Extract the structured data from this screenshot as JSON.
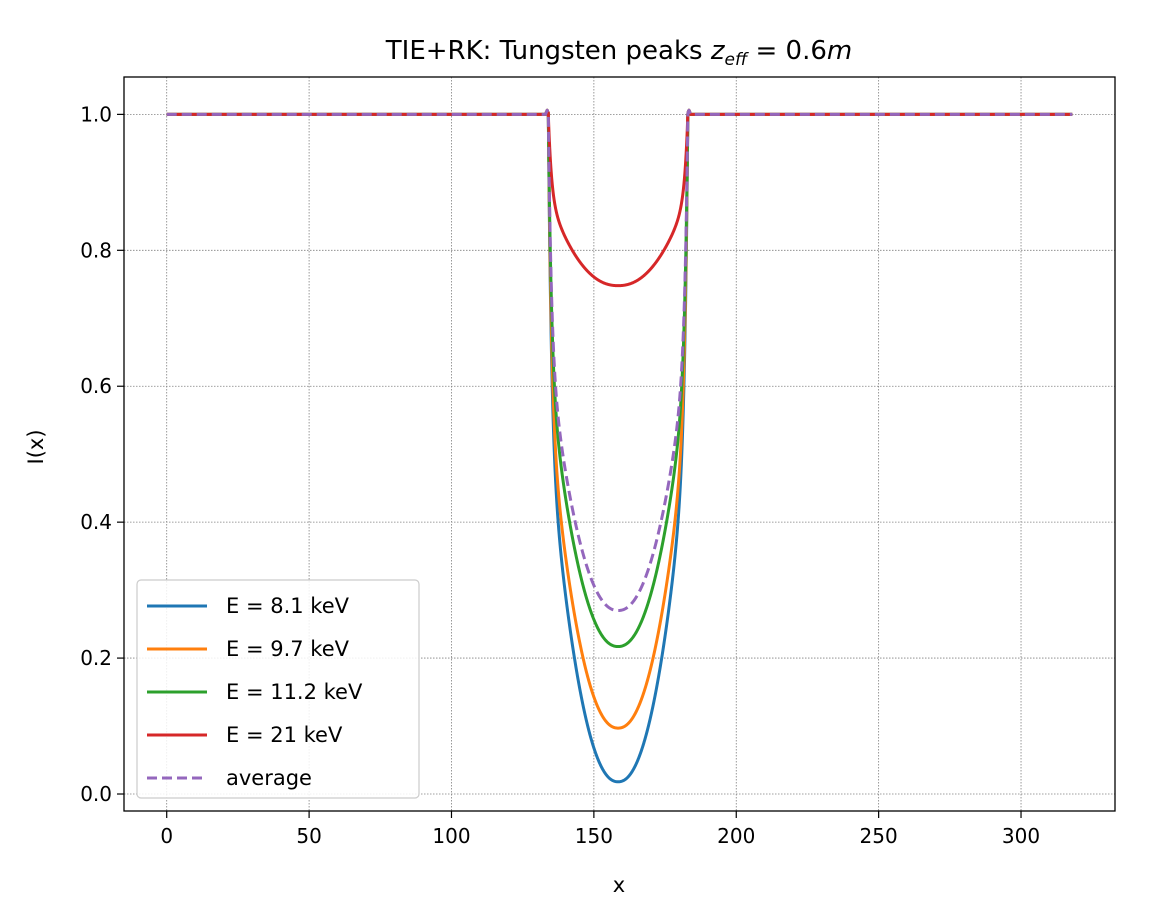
{
  "chart_data": {
    "type": "line",
    "title": "TIE+RK: Tungsten peaks ",
    "title_math": "z_eff = 0.6m",
    "xlabel": "x",
    "ylabel": "I(x)",
    "xlim": [
      -15,
      333
    ],
    "ylim": [
      -0.025,
      1.055
    ],
    "xticks": [
      0,
      50,
      100,
      150,
      200,
      250,
      300
    ],
    "yticks": [
      0.0,
      0.2,
      0.4,
      0.6,
      0.8,
      1.0
    ],
    "grid": true,
    "legend_position": "lower-left",
    "feature": {
      "x_start": 134,
      "x_end": 183,
      "x_center": 158.5,
      "x_max": 318,
      "baseline": 1.0
    },
    "series": [
      {
        "name": "E = 8.1 keV",
        "color": "#1f77b4",
        "dash": "solid",
        "min_value": 0.018
      },
      {
        "name": "E = 9.7 keV",
        "color": "#ff7f0e",
        "dash": "solid",
        "min_value": 0.097
      },
      {
        "name": "E = 11.2 keV",
        "color": "#2ca02c",
        "dash": "solid",
        "min_value": 0.217
      },
      {
        "name": "E = 21 keV",
        "color": "#d62728",
        "dash": "solid",
        "min_value": 0.748
      },
      {
        "name": "average",
        "color": "#9467bd",
        "dash": "dashed",
        "min_value": 0.27
      }
    ]
  }
}
